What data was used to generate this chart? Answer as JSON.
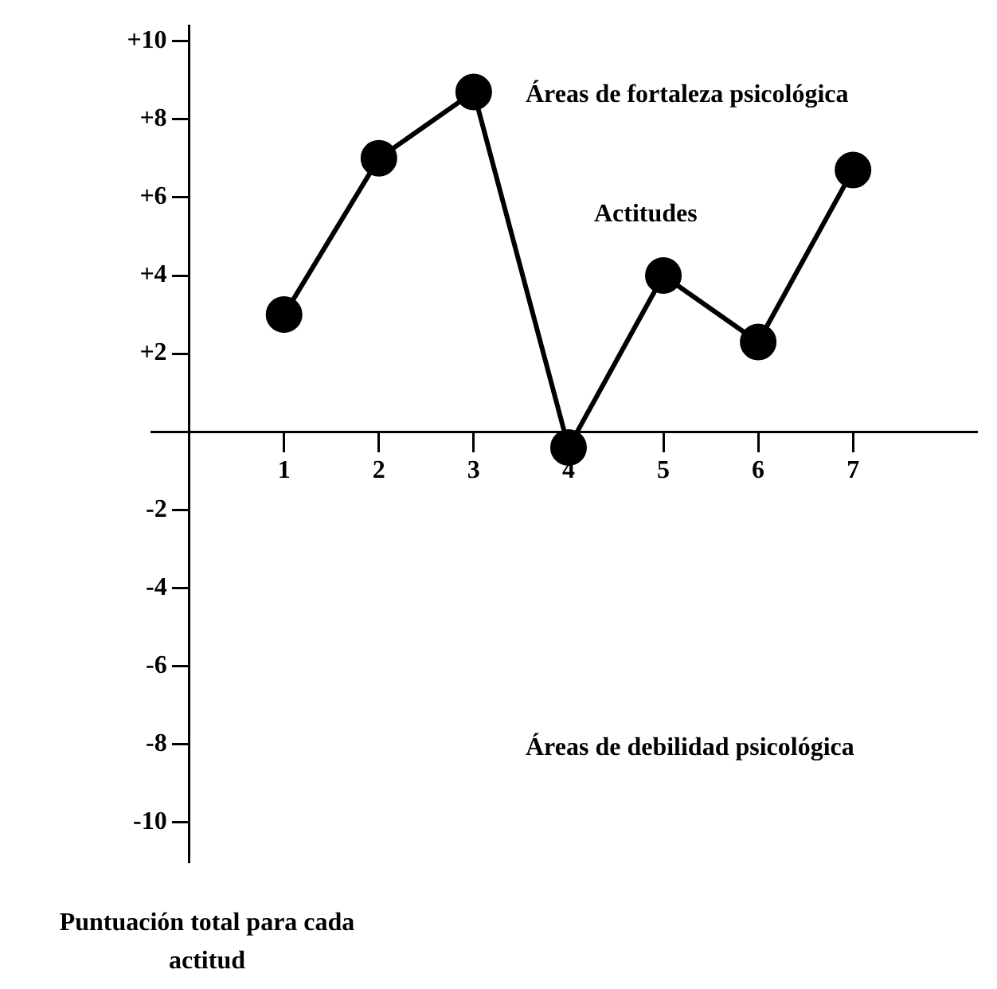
{
  "chart_data": {
    "type": "line",
    "x": [
      1,
      2,
      3,
      4,
      5,
      6,
      7
    ],
    "series": [
      {
        "color": "#000000",
        "values": [
          3,
          7,
          8.7,
          -0.4,
          4,
          2.3,
          6.7
        ]
      }
    ],
    "xlim": [
      -0.4,
      8.3
    ],
    "xticks": [
      1,
      2,
      3,
      4,
      5,
      6,
      7
    ],
    "ylim": [
      -11,
      10.4
    ],
    "yticks": [
      {
        "value": 10,
        "label": "+10"
      },
      {
        "value": 8,
        "label": "+8"
      },
      {
        "value": 6,
        "label": "+6"
      },
      {
        "value": 4,
        "label": "+4"
      },
      {
        "value": 2,
        "label": "+2"
      },
      -2,
      -4,
      -6,
      -8,
      -10
    ],
    "annotations": [
      "Áreas de fortaleza psicológica",
      "Actitudes",
      "Áreas de debilidad psicológica",
      "Puntuación total para cada actitud"
    ],
    "marker": "circle",
    "line_style": "solid",
    "grid": false,
    "legend": false
  }
}
